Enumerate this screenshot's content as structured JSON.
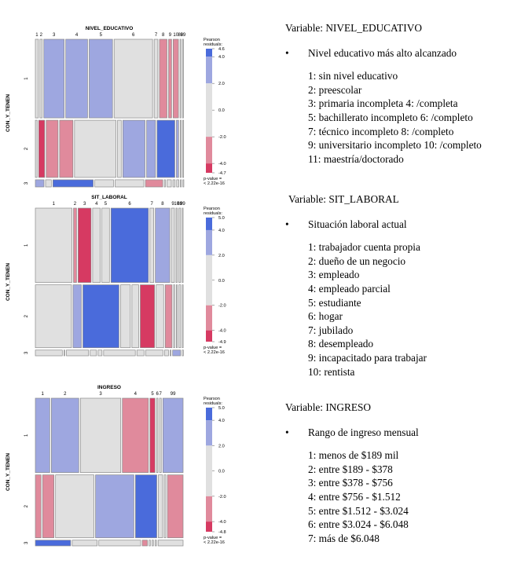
{
  "colors": {
    "strong_pos": "#4a6bdb",
    "mid_pos": "#9ea7e0",
    "neutral": "#e0e0e0",
    "mid_neg": "#e08a9c",
    "strong_neg": "#d63a62",
    "border": "#8a8a8a"
  },
  "chart_data": [
    {
      "type": "mosaic",
      "title": "NIVEL_EDUCATIVO",
      "xlabel": "NIVEL_EDUCATIVO",
      "ylabel": "CON_Y_TENEN",
      "x_tick_labels": [
        "1",
        "2",
        "3",
        "4",
        "5",
        "6",
        "7",
        "8",
        "9",
        "10",
        "88",
        "99"
      ],
      "y_tick_labels": [
        "1",
        "2",
        "3"
      ],
      "legend_title": "Pearson\nresiduals:",
      "legend_ticks": [
        "4.6",
        "4.0",
        "2.0",
        "0.0",
        "-2.0",
        "-4.0",
        "-4.7"
      ],
      "residual_range": [
        -4.7,
        4.6
      ],
      "p_value": "p-value =\n< 2.22e-16",
      "rows": [
        {
          "label": "1",
          "share": 0.55,
          "cells": [
            {
              "c": "1",
              "w": 0.02,
              "s": "neutral"
            },
            {
              "c": "2",
              "w": 0.015,
              "s": "neutral"
            },
            {
              "c": "3",
              "w": 0.135,
              "s": "mid_pos"
            },
            {
              "c": "4",
              "w": 0.145,
              "s": "mid_pos"
            },
            {
              "c": "5",
              "w": 0.155,
              "s": "mid_pos"
            },
            {
              "c": "6",
              "w": 0.255,
              "s": "neutral"
            },
            {
              "c": "7",
              "w": 0.025,
              "s": "neutral"
            },
            {
              "c": "8",
              "w": 0.05,
              "s": "mid_neg"
            },
            {
              "c": "9",
              "w": 0.02,
              "s": "mid_neg"
            },
            {
              "c": "10",
              "w": 0.035,
              "s": "mid_neg"
            },
            {
              "c": "88",
              "w": 0.006,
              "s": "neutral"
            },
            {
              "c": "99",
              "w": 0.004,
              "s": "neutral"
            }
          ]
        },
        {
          "label": "2",
          "share": 0.4,
          "cells": [
            {
              "c": "1",
              "w": 0.012,
              "s": "neutral"
            },
            {
              "c": "2",
              "w": 0.04,
              "s": "strong_neg"
            },
            {
              "c": "3",
              "w": 0.08,
              "s": "mid_neg"
            },
            {
              "c": "4",
              "w": 0.09,
              "s": "mid_neg"
            },
            {
              "c": "5",
              "w": 0.28,
              "s": "neutral"
            },
            {
              "c": "6",
              "w": 0.025,
              "s": "neutral"
            },
            {
              "c": "7",
              "w": 0.15,
              "s": "mid_pos"
            },
            {
              "c": "8",
              "w": 0.06,
              "s": "mid_pos"
            },
            {
              "c": "9",
              "w": 0.12,
              "s": "strong_pos"
            },
            {
              "c": "10",
              "w": 0.015,
              "s": "mid_pos"
            },
            {
              "c": "88",
              "w": 0.005,
              "s": "neutral"
            },
            {
              "c": "99",
              "w": 0.004,
              "s": "neutral"
            }
          ]
        },
        {
          "label": "3",
          "share": 0.05,
          "cells": [
            {
              "c": "1",
              "w": 0.06,
              "s": "mid_pos"
            },
            {
              "c": "2",
              "w": 0.04,
              "s": "neutral"
            },
            {
              "c": "3",
              "w": 0.28,
              "s": "strong_pos"
            },
            {
              "c": "4",
              "w": 0.13,
              "s": "neutral"
            },
            {
              "c": "5",
              "w": 0.2,
              "s": "neutral"
            },
            {
              "c": "6",
              "w": 0.12,
              "s": "mid_neg"
            },
            {
              "c": "7",
              "w": 0.008,
              "s": "neutral"
            },
            {
              "c": "8",
              "w": 0.03,
              "s": "neutral"
            },
            {
              "c": "9",
              "w": 0.015,
              "s": "neutral"
            },
            {
              "c": "10",
              "w": 0.015,
              "s": "neutral"
            },
            {
              "c": "88",
              "w": 0.004,
              "s": "neutral"
            },
            {
              "c": "99",
              "w": 0.004,
              "s": "neutral"
            }
          ]
        }
      ]
    },
    {
      "type": "mosaic",
      "title": "SIT_LABORAL",
      "xlabel": "SIT_LABORAL",
      "ylabel": "CON_Y_TENEN",
      "x_tick_labels": [
        "1",
        "2",
        "3",
        "4",
        "5",
        "6",
        "7",
        "8",
        "9",
        "10",
        "88",
        "99"
      ],
      "y_tick_labels": [
        "1",
        "2",
        "3"
      ],
      "legend_title": "Pearson\nresiduals:",
      "legend_ticks": [
        "5.0",
        "4.0",
        "2.0",
        "0.0",
        "-2.0",
        "-4.0",
        "-4.9"
      ],
      "residual_range": [
        -4.9,
        5.0
      ],
      "p_value": "p-value =\n< 2.22e-16",
      "rows": [
        {
          "label": "1",
          "share": 0.52,
          "cells": [
            {
              "c": "1",
              "w": 0.24,
              "s": "neutral"
            },
            {
              "c": "2",
              "w": 0.02,
              "s": "mid_neg"
            },
            {
              "c": "3",
              "w": 0.085,
              "s": "strong_neg"
            },
            {
              "c": "4",
              "w": 0.05,
              "s": "neutral"
            },
            {
              "c": "5",
              "w": 0.05,
              "s": "neutral"
            },
            {
              "c": "6",
              "w": 0.245,
              "s": "strong_pos"
            },
            {
              "c": "7",
              "w": 0.025,
              "s": "neutral"
            },
            {
              "c": "8",
              "w": 0.095,
              "s": "mid_pos"
            },
            {
              "c": "9",
              "w": 0.02,
              "s": "neutral"
            },
            {
              "c": "10",
              "w": 0.008,
              "s": "neutral"
            },
            {
              "c": "88",
              "w": 0.012,
              "s": "neutral"
            },
            {
              "c": "99",
              "w": 0.006,
              "s": "neutral"
            }
          ]
        },
        {
          "label": "2",
          "share": 0.44,
          "cells": [
            {
              "c": "1",
              "w": 0.24,
              "s": "neutral"
            },
            {
              "c": "2",
              "w": 0.055,
              "s": "mid_pos"
            },
            {
              "c": "3",
              "w": 0.24,
              "s": "strong_pos"
            },
            {
              "c": "4",
              "w": 0.065,
              "s": "neutral"
            },
            {
              "c": "5",
              "w": 0.045,
              "s": "neutral"
            },
            {
              "c": "6",
              "w": 0.095,
              "s": "strong_neg"
            },
            {
              "c": "7",
              "w": 0.05,
              "s": "neutral"
            },
            {
              "c": "8",
              "w": 0.045,
              "s": "mid_neg"
            },
            {
              "c": "9",
              "w": 0.008,
              "s": "neutral"
            },
            {
              "c": "10",
              "w": 0.006,
              "s": "neutral"
            },
            {
              "c": "88",
              "w": 0.012,
              "s": "neutral"
            },
            {
              "c": "99",
              "w": 0.006,
              "s": "neutral"
            }
          ]
        },
        {
          "label": "3",
          "share": 0.04,
          "cells": [
            {
              "c": "1",
              "w": 0.17,
              "s": "neutral"
            },
            {
              "c": "2",
              "w": 0.005,
              "s": "neutral"
            },
            {
              "c": "3",
              "w": 0.14,
              "s": "neutral"
            },
            {
              "c": "4",
              "w": 0.04,
              "s": "neutral"
            },
            {
              "c": "5",
              "w": 0.025,
              "s": "neutral"
            },
            {
              "c": "6",
              "w": 0.2,
              "s": "neutral"
            },
            {
              "c": "7",
              "w": 0.045,
              "s": "neutral"
            },
            {
              "c": "8",
              "w": 0.11,
              "s": "neutral"
            },
            {
              "c": "9",
              "w": 0.025,
              "s": "neutral"
            },
            {
              "c": "10",
              "w": 0.005,
              "s": "neutral"
            },
            {
              "c": "88",
              "w": 0.05,
              "s": "mid_pos"
            },
            {
              "c": "99",
              "w": 0.008,
              "s": "neutral"
            }
          ]
        }
      ]
    },
    {
      "type": "mosaic",
      "title": "INGRESO",
      "xlabel": "INGRESO",
      "ylabel": "CON_Y_TENEN",
      "x_tick_labels": [
        "1",
        "2",
        "3",
        "4",
        "5",
        "6",
        "7",
        "99"
      ],
      "y_tick_labels": [
        "1",
        "2",
        "3"
      ],
      "legend_title": "Pearson\nresiduals:",
      "legend_ticks": [
        "5.0",
        "4.0",
        "2.0",
        "0.0",
        "-2.0",
        "-4.0",
        "-4.8"
      ],
      "residual_range": [
        -4.8,
        5.0
      ],
      "p_value": "p-value =\n< 2.22e-16",
      "rows": [
        {
          "label": "1",
          "share": 0.52,
          "cells": [
            {
              "c": "1",
              "w": 0.1,
              "s": "mid_pos"
            },
            {
              "c": "2",
              "w": 0.19,
              "s": "mid_pos"
            },
            {
              "c": "3",
              "w": 0.28,
              "s": "neutral"
            },
            {
              "c": "4",
              "w": 0.18,
              "s": "mid_neg"
            },
            {
              "c": "5",
              "w": 0.035,
              "s": "strong_neg"
            },
            {
              "c": "6",
              "w": 0.01,
              "s": "neutral"
            },
            {
              "c": "7",
              "w": 0.012,
              "s": "neutral"
            },
            {
              "c": "99",
              "w": 0.14,
              "s": "mid_pos"
            }
          ]
        },
        {
          "label": "2",
          "share": 0.44,
          "cells": [
            {
              "c": "1",
              "w": 0.04,
              "s": "mid_neg"
            },
            {
              "c": "2",
              "w": 0.08,
              "s": "mid_neg"
            },
            {
              "c": "3",
              "w": 0.27,
              "s": "neutral"
            },
            {
              "c": "4",
              "w": 0.27,
              "s": "mid_pos"
            },
            {
              "c": "5",
              "w": 0.15,
              "s": "strong_pos"
            },
            {
              "c": "6",
              "w": 0.03,
              "s": "neutral"
            },
            {
              "c": "7",
              "w": 0.012,
              "s": "neutral"
            },
            {
              "c": "99",
              "w": 0.11,
              "s": "mid_neg"
            }
          ]
        },
        {
          "label": "3",
          "share": 0.04,
          "cells": [
            {
              "c": "1",
              "w": 0.24,
              "s": "strong_pos"
            },
            {
              "c": "2",
              "w": 0.17,
              "s": "neutral"
            },
            {
              "c": "3",
              "w": 0.285,
              "s": "neutral"
            },
            {
              "c": "4",
              "w": 0.035,
              "s": "mid_neg"
            },
            {
              "c": "5",
              "w": 0.01,
              "s": "neutral"
            },
            {
              "c": "6",
              "w": 0.01,
              "s": "neutral"
            },
            {
              "c": "7",
              "w": 0.01,
              "s": "neutral"
            },
            {
              "c": "99",
              "w": 0.17,
              "s": "neutral"
            }
          ]
        }
      ]
    }
  ],
  "descriptions": [
    {
      "title": "Variable: NIVEL_EDUCATIVO",
      "bullet": "Nivel educativo más alto alcanzado",
      "items": [
        "1: sin nivel educativo",
        "2: preescolar",
        "3: primaria incompleta 4: /completa",
        "5: bachillerato incompleto 6: /completo",
        "7: técnico incompleto 8: /completo",
        "9: universitario incompleto 10: /completo",
        "11: maestría/doctorado"
      ]
    },
    {
      "title": "Variable: SIT_LABORAL",
      "bullet": "Situación laboral actual",
      "items": [
        "1: trabajador cuenta propia",
        "2: dueño de un negocio",
        "3: empleado",
        "4: empleado parcial",
        "5: estudiante",
        "6: hogar",
        "7: jubilado",
        "8: desempleado",
        "9: incapacitado para trabajar",
        "10: rentista"
      ]
    },
    {
      "title": "Variable: INGRESO",
      "bullet": "Rango de ingreso mensual",
      "items": [
        "1: menos de $189 mil",
        "2: entre $189 - $378",
        "3: entre $378 - $756",
        "4: entre $756 - $1.512",
        "5: entre $1.512 - $3.024",
        "6: entre $3.024 - $6.048",
        "7: más de $6.048"
      ]
    }
  ],
  "bullet_glyph": "•"
}
